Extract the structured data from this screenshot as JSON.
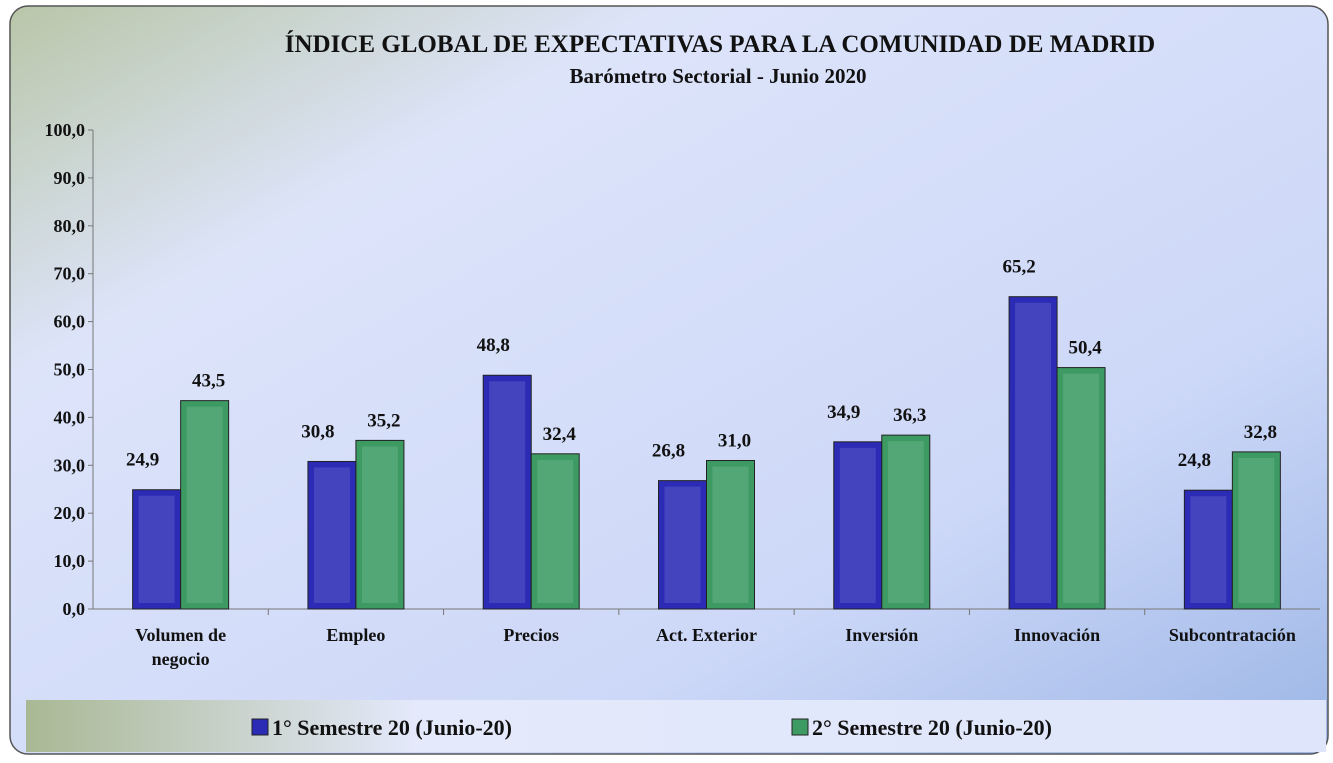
{
  "chart_data": {
    "type": "bar",
    "title": "ÍNDICE GLOBAL DE EXPECTATIVAS PARA LA COMUNIDAD DE MADRID",
    "subtitle": "Barómetro Sectorial - Junio 2020",
    "categories": [
      "Volumen de negocio",
      "Empleo",
      "Precios",
      "Act. Exterior",
      "Inversión",
      "Innovación",
      "Subcontratación"
    ],
    "series": [
      {
        "name": "1° Semestre 20 (Junio-20)",
        "color": "#2b2bb5",
        "values": [
          24.9,
          30.8,
          48.8,
          26.8,
          34.9,
          65.2,
          24.8
        ],
        "value_labels": [
          "24,9",
          "30,8",
          "48,8",
          "26,8",
          "34,9",
          "65,2",
          "24,8"
        ]
      },
      {
        "name": "2° Semestre 20 (Junio-20)",
        "color": "#3c9a62",
        "values": [
          43.5,
          35.2,
          32.4,
          31.0,
          36.3,
          50.4,
          32.8
        ],
        "value_labels": [
          "43,5",
          "35,2",
          "32,4",
          "31,0",
          "36,3",
          "50,4",
          "32,8"
        ]
      }
    ],
    "ylim": [
      0,
      100
    ],
    "yticks": [
      {
        "value": 0,
        "label": "0,0"
      },
      {
        "value": 10,
        "label": "10,0"
      },
      {
        "value": 20,
        "label": "20,0"
      },
      {
        "value": 30,
        "label": "30,0"
      },
      {
        "value": 40,
        "label": "40,0"
      },
      {
        "value": 50,
        "label": "50,0"
      },
      {
        "value": 60,
        "label": "60,0"
      },
      {
        "value": 70,
        "label": "70,0"
      },
      {
        "value": 80,
        "label": "80,0"
      },
      {
        "value": 90,
        "label": "90,0"
      },
      {
        "value": 100,
        "label": "100,0"
      }
    ],
    "legend": "bottom"
  }
}
